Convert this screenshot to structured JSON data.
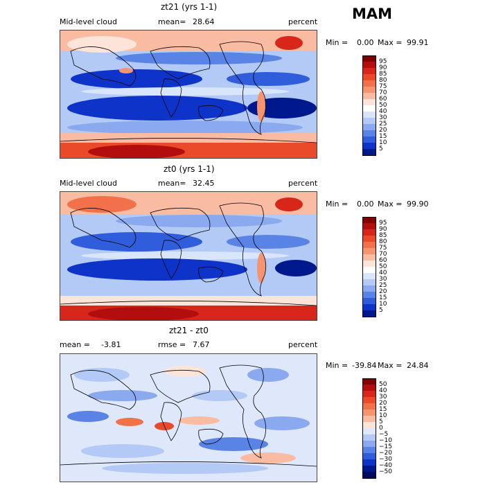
{
  "season": "MAM",
  "panels": [
    {
      "title": "zt21 (yrs 1-1)",
      "left_label": "Mid-level cloud",
      "mean_label": "mean=",
      "mean_value": "28.64",
      "units": "percent",
      "min_label": "Min =",
      "min_value": "0.00",
      "max_label": "Max =",
      "max_value": "99.91",
      "colorbar": {
        "labels": [
          "95",
          "90",
          "85",
          "80",
          "75",
          "70",
          "60",
          "50",
          "40",
          "30",
          "25",
          "20",
          "15",
          "10",
          "5"
        ],
        "colors": [
          "#7f0000",
          "#b40d0d",
          "#d8261a",
          "#ea4a2a",
          "#f2704a",
          "#f69472",
          "#f9bca3",
          "#fce4d8",
          "#ffffff",
          "#d9e5fb",
          "#b3c9f6",
          "#8aa9ef",
          "#5a83e6",
          "#2f5ddb",
          "#0d33c9",
          "#00188e"
        ]
      }
    },
    {
      "title": "zt0 (yrs 1-1)",
      "left_label": "Mid-level cloud",
      "mean_label": "mean=",
      "mean_value": "32.45",
      "units": "percent",
      "min_label": "Min =",
      "min_value": "0.00",
      "max_label": "Max =",
      "max_value": "99.90",
      "colorbar": {
        "labels": [
          "95",
          "90",
          "85",
          "80",
          "75",
          "70",
          "60",
          "50",
          "40",
          "30",
          "25",
          "20",
          "15",
          "10",
          "5"
        ],
        "colors": [
          "#7f0000",
          "#b40d0d",
          "#d8261a",
          "#ea4a2a",
          "#f2704a",
          "#f69472",
          "#f9bca3",
          "#fce4d8",
          "#ffffff",
          "#d9e5fb",
          "#b3c9f6",
          "#8aa9ef",
          "#5a83e6",
          "#2f5ddb",
          "#0d33c9",
          "#00188e"
        ]
      }
    },
    {
      "title": "zt21 - zt0",
      "left_label": "mean =",
      "left_value": "-3.81",
      "mean_label": "rmse =",
      "mean_value": "7.67",
      "units": "percent",
      "min_label": "Min =",
      "min_value": "-39.84",
      "max_label": "Max =",
      "max_value": "24.84",
      "colorbar": {
        "labels": [
          "50",
          "40",
          "30",
          "20",
          "15",
          "10",
          "5",
          "0",
          "−5",
          "−10",
          "−15",
          "−20",
          "−30",
          "−40",
          "−50"
        ],
        "colors": [
          "#7f0000",
          "#b40d0d",
          "#d8261a",
          "#ea4a2a",
          "#f2704a",
          "#f69472",
          "#f9bca3",
          "#fce4d8",
          "#dfe8fb",
          "#b3c9f6",
          "#8aa9ef",
          "#5a83e6",
          "#2f5ddb",
          "#0d33c9",
          "#00188e",
          "#000a5e"
        ]
      }
    }
  ]
}
